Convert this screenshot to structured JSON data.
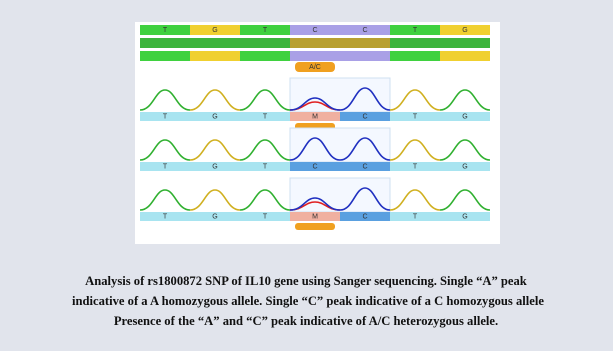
{
  "figure": {
    "top_row": [
      "T",
      "G",
      "T",
      "C",
      "C",
      "T",
      "G"
    ],
    "marker_label": "A/C",
    "tracks": [
      {
        "bases": [
          "T",
          "G",
          "T",
          "M",
          "C",
          "T",
          "G"
        ]
      },
      {
        "bases": [
          "T",
          "G",
          "T",
          "C",
          "C",
          "T",
          "G"
        ]
      },
      {
        "bases": [
          "T",
          "G",
          "T",
          "M",
          "C",
          "T",
          "G"
        ]
      }
    ]
  },
  "caption": [
    "Analysis of rs1800872 SNP of IL10 gene using Sanger sequencing. Single “A” peak",
    "indicative of a A homozygous allele. Single “C” peak indicative of a C homozygous allele",
    "Presence of the “A” and “C” peak indicative of A/C heterozygous allele."
  ]
}
